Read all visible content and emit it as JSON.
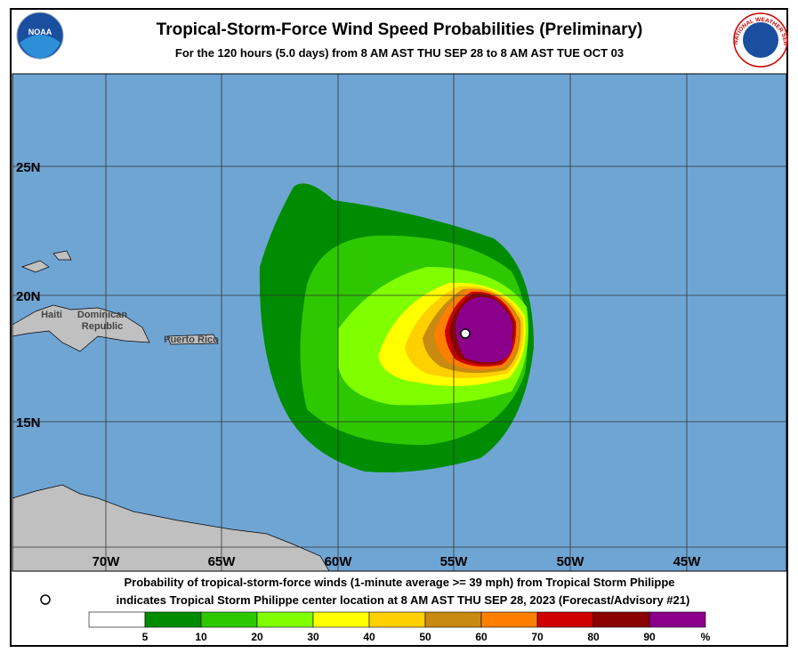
{
  "header": {
    "title": "Tropical-Storm-Force Wind Speed Probabilities (Preliminary)",
    "subtitle": "For the 120 hours (5.0 days) from 8 AM AST THU SEP 28 to 8 AM AST TUE OCT 03",
    "left_logo": "NOAA",
    "right_logo": "NATIONAL WEATHER SERVICE"
  },
  "map": {
    "lat_labels": [
      "25N",
      "20N",
      "15N"
    ],
    "lon_labels": [
      "70W",
      "65W",
      "60W",
      "55W",
      "50W",
      "45W"
    ],
    "place_labels": [
      "Haiti",
      "Dominican Republic",
      "Puerto Rico"
    ]
  },
  "footer": {
    "line1": "Probability of tropical-storm-force winds (1-minute average >= 39 mph) from Tropical Storm Philippe",
    "line2": "indicates Tropical Storm Philippe center location at 8 AM AST THU SEP 28, 2023 (Forecast/Advisory #21)"
  },
  "legend": {
    "levels": [
      {
        "label": "5",
        "color": "#008c00"
      },
      {
        "label": "10",
        "color": "#2ec800"
      },
      {
        "label": "20",
        "color": "#80ff00"
      },
      {
        "label": "30",
        "color": "#ffff00"
      },
      {
        "label": "40",
        "color": "#ffd000"
      },
      {
        "label": "50",
        "color": "#c88a10"
      },
      {
        "label": "60",
        "color": "#ff7f00"
      },
      {
        "label": "70",
        "color": "#d00000"
      },
      {
        "label": "80",
        "color": "#8b0000"
      },
      {
        "label": "90",
        "color": "#8b008b"
      }
    ],
    "low_color": "#ffffff",
    "unit": "%"
  }
}
